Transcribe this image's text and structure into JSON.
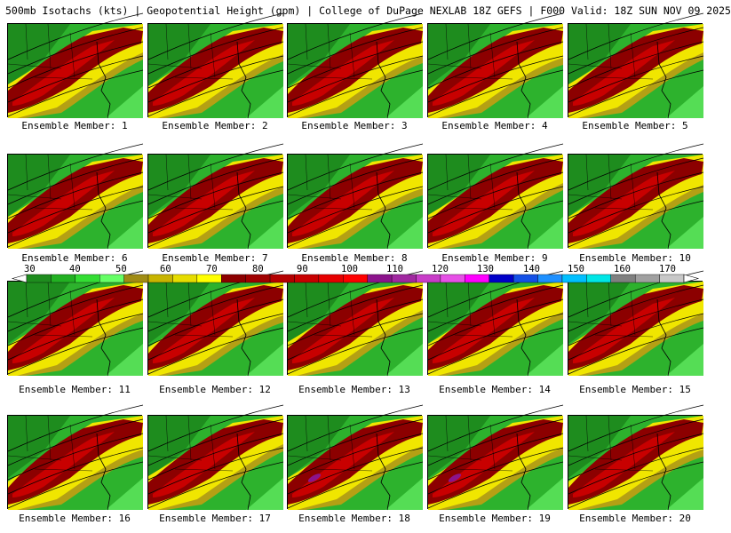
{
  "header": {
    "title": "500mb Isotachs (kts) | Geopotential Height (gpm) | College of DuPage NEXLAB   18Z GEFS | F000 Valid: 18Z SUN NOV 09 2025"
  },
  "panels": [
    {
      "label": "Ensemble Member: 1"
    },
    {
      "label": "Ensemble Member: 2"
    },
    {
      "label": "Ensemble Member: 3"
    },
    {
      "label": "Ensemble Member: 4"
    },
    {
      "label": "Ensemble Member: 5"
    },
    {
      "label": "Ensemble Member: 6"
    },
    {
      "label": "Ensemble Member: 7"
    },
    {
      "label": "Ensemble Member: 8"
    },
    {
      "label": "Ensemble Member: 9"
    },
    {
      "label": "Ensemble Member: 10"
    },
    {
      "label": "Ensemble Member: 11"
    },
    {
      "label": "Ensemble Member: 12"
    },
    {
      "label": "Ensemble Member: 13"
    },
    {
      "label": "Ensemble Member: 14"
    },
    {
      "label": "Ensemble Member: 15"
    },
    {
      "label": "Ensemble Member: 16"
    },
    {
      "label": "Ensemble Member: 17"
    },
    {
      "label": "Ensemble Member: 18"
    },
    {
      "label": "Ensemble Member: 19"
    },
    {
      "label": "Ensemble Member: 20"
    }
  ],
  "colorbar": {
    "ticks": [
      "30",
      "40",
      "50",
      "60",
      "70",
      "80",
      "90",
      "100",
      "110",
      "120",
      "130",
      "140",
      "150",
      "160",
      "170"
    ],
    "colors": [
      "#1e8c1e",
      "#22b022",
      "#33dd33",
      "#66ff66",
      "#a08c14",
      "#c8b400",
      "#e6dc00",
      "#ffff00",
      "#8c0000",
      "#a00000",
      "#b40000",
      "#c80000",
      "#e60000",
      "#ff0000",
      "#8c148c",
      "#a028a0",
      "#c83cc8",
      "#e650e6",
      "#ff00ff",
      "#0000c8",
      "#1450e6",
      "#1e90ff",
      "#00bfff",
      "#00e6e6",
      "#808080",
      "#a0a0a0",
      "#c8c8c8"
    ]
  },
  "map_colors": {
    "green_dark": "#1e8c1e",
    "green": "#2db22d",
    "green_light": "#55dd55",
    "yellow_dark": "#b4a014",
    "yellow": "#f0e600",
    "red_dark": "#8c0000",
    "red": "#c80000",
    "purple": "#8c148c"
  }
}
